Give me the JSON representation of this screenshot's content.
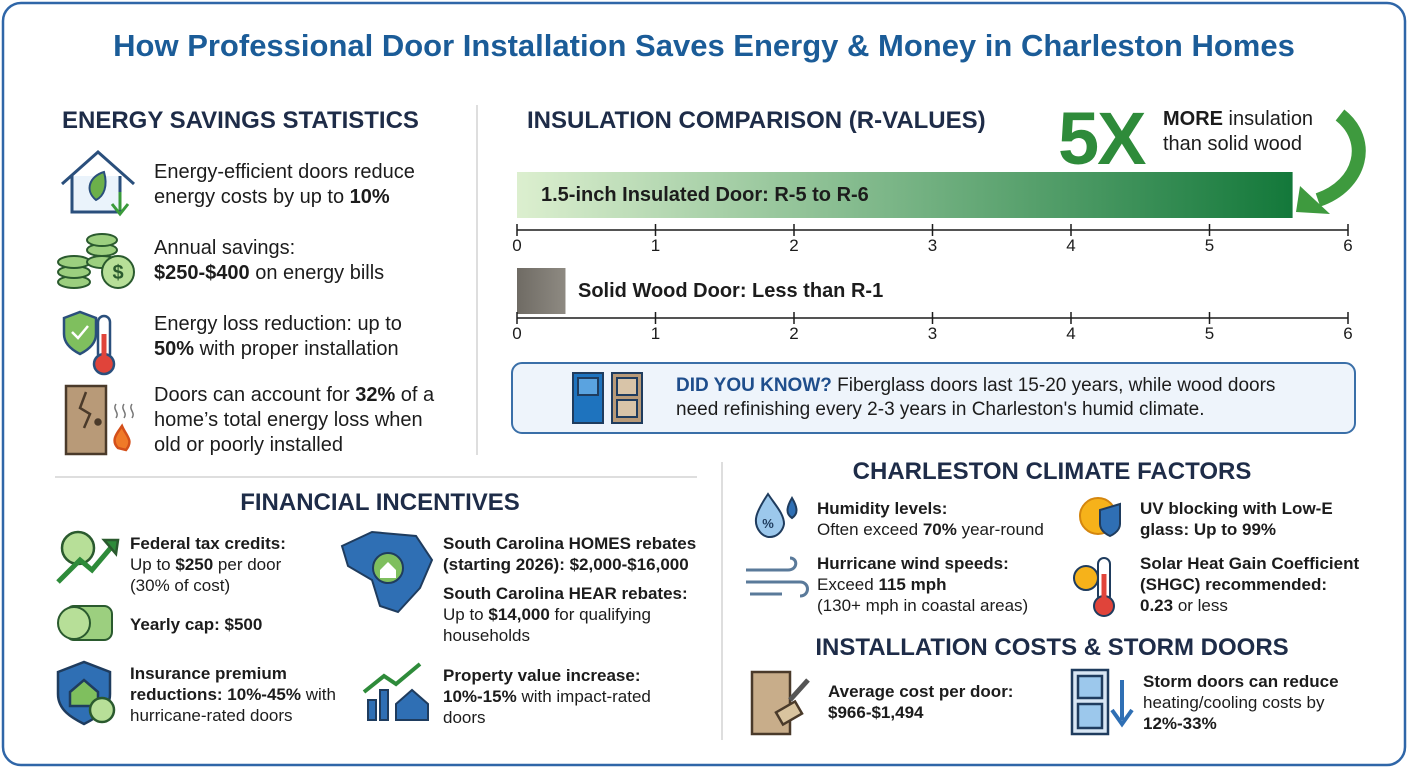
{
  "title": "How Professional Door Installation Saves Energy & Money in Charleston Homes",
  "energy": {
    "heading": "ENERGY SAVINGS STATISTICS",
    "items": [
      [
        [
          {
            "text": "Energy-efficient doors reduce"
          }
        ],
        [
          {
            "text": "energy costs by up to "
          },
          {
            "text": "10%",
            "bold": true
          }
        ]
      ],
      [
        [
          {
            "text": "Annual savings:"
          }
        ],
        [
          {
            "text": "$250-$400",
            "bold": true
          },
          {
            "text": " on energy bills"
          }
        ]
      ],
      [
        [
          {
            "text": "Energy loss reduction: up to"
          }
        ],
        [
          {
            "text": "50%",
            "bold": true
          },
          {
            "text": " with proper installation"
          }
        ]
      ],
      [
        [
          {
            "text": "Doors can account for "
          },
          {
            "text": "32%",
            "bold": true
          },
          {
            "text": " of a"
          }
        ],
        [
          {
            "text": "home’s total energy loss when"
          }
        ],
        [
          {
            "text": "old or poorly installed"
          }
        ]
      ]
    ]
  },
  "insulation": {
    "heading": "INSULATION COMPARISON (R-VALUES)",
    "multiplier": "5X",
    "callout": [
      [
        {
          "text": "MORE",
          "bold": true
        },
        {
          "text": " insulation"
        }
      ],
      [
        {
          "text": "than solid wood"
        }
      ]
    ],
    "xlim": [
      0,
      6
    ],
    "xticks": [
      0,
      1,
      2,
      3,
      4,
      5,
      6
    ],
    "bars": [
      {
        "label": "1.5-inch Insulated Door: R-5 to R-6",
        "value": 5.6,
        "color": "#13783a"
      },
      {
        "label": "Solid Wood Door: Less than R-1",
        "value": 0.35,
        "color": "#8e8a82"
      }
    ],
    "note": [
      [
        {
          "text": "DID YOU KNOW?",
          "bold": true
        },
        {
          "text": " Fiberglass doors last 15-20 years, while wood doors"
        }
      ],
      [
        {
          "text": "need refinishing every 2-3 years in Charleston's humid climate."
        }
      ]
    ]
  },
  "financial": {
    "heading": "FINANCIAL INCENTIVES",
    "items": [
      [
        [
          {
            "text": "Federal tax credits:",
            "bold": true
          }
        ],
        [
          {
            "text": "Up to "
          },
          {
            "text": "$250",
            "bold": true
          },
          {
            "text": " per door"
          }
        ],
        [
          {
            "text": "(30% of cost)"
          }
        ]
      ],
      [
        [
          {
            "text": "Yearly cap: $500",
            "bold": true
          }
        ]
      ],
      [
        [
          {
            "text": "Insurance premium",
            "bold": true
          }
        ],
        [
          {
            "text": "reductions: 10%-45%",
            "bold": true
          },
          {
            "text": " with"
          }
        ],
        [
          {
            "text": "hurricane-rated doors"
          }
        ]
      ],
      [
        [
          {
            "text": "South Carolina HOMES rebates",
            "bold": true
          }
        ],
        [
          {
            "text": "(starting 2026): $2,000-$16,000",
            "bold": true
          }
        ]
      ],
      [
        [
          {
            "text": "South Carolina HEAR rebates:",
            "bold": true
          }
        ],
        [
          {
            "text": "Up to "
          },
          {
            "text": "$14,000",
            "bold": true
          },
          {
            "text": " for qualifying"
          }
        ],
        [
          {
            "text": "households"
          }
        ]
      ],
      [
        [
          {
            "text": "Property value increase:",
            "bold": true
          }
        ],
        [
          {
            "text": "10%-15%",
            "bold": true
          },
          {
            "text": " with impact-rated"
          }
        ],
        [
          {
            "text": "doors"
          }
        ]
      ]
    ]
  },
  "climate": {
    "heading": "CHARLESTON CLIMATE FACTORS",
    "items": [
      [
        [
          {
            "text": "Humidity levels:",
            "bold": true
          }
        ],
        [
          {
            "text": "Often exceed "
          },
          {
            "text": "70%",
            "bold": true
          },
          {
            "text": " year-round"
          }
        ]
      ],
      [
        [
          {
            "text": "Hurricane wind speeds:",
            "bold": true
          }
        ],
        [
          {
            "text": "Exceed "
          },
          {
            "text": "115 mph",
            "bold": true
          }
        ],
        [
          {
            "text": "(130+ mph in coastal areas)"
          }
        ]
      ],
      [
        [
          {
            "text": "UV blocking with Low-E",
            "bold": true
          }
        ],
        [
          {
            "text": "glass: Up to 99%",
            "bold": true
          }
        ]
      ],
      [
        [
          {
            "text": "Solar Heat Gain Coefficient",
            "bold": true
          }
        ],
        [
          {
            "text": "(SHGC) recommended:",
            "bold": true
          }
        ],
        [
          {
            "text": "0.23",
            "bold": true
          },
          {
            "text": " or less"
          }
        ]
      ]
    ]
  },
  "installation": {
    "heading": "INSTALLATION COSTS & STORM DOORS",
    "items": [
      [
        [
          {
            "text": "Average cost per door:",
            "bold": true
          }
        ],
        [
          {
            "text": "$966-$1,494",
            "bold": true
          }
        ]
      ],
      [
        [
          {
            "text": "Storm doors can reduce",
            "bold": true
          }
        ],
        [
          {
            "text": "heating/cooling costs by"
          }
        ],
        [
          {
            "text": "12%-33%",
            "bold": true
          }
        ]
      ]
    ]
  }
}
